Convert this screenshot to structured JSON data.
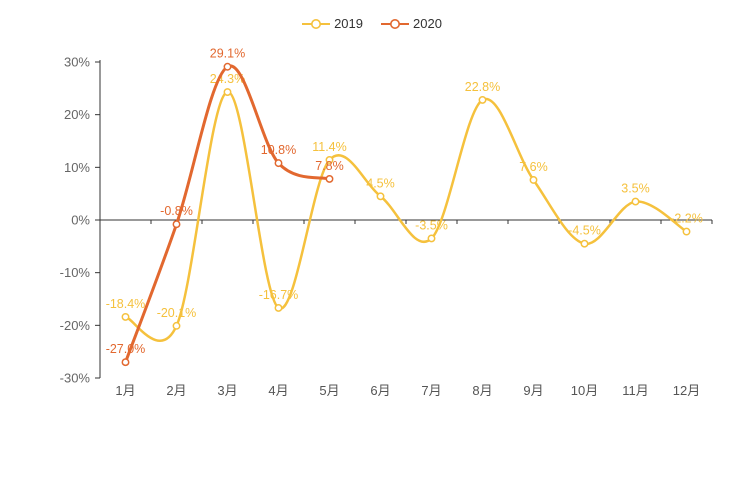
{
  "chart_data": {
    "type": "line",
    "title": "",
    "smooth": true,
    "grid": false,
    "legend_position": "top",
    "background": "#ffffff",
    "axis_color": "#333333",
    "axis_label_color": "#666666",
    "categories": [
      "1月",
      "2月",
      "3月",
      "4月",
      "5月",
      "6月",
      "7月",
      "8月",
      "9月",
      "10月",
      "11月",
      "12月"
    ],
    "ylim": [
      -30,
      30
    ],
    "y_ticks": [
      {
        "value": 30,
        "label": "30%"
      },
      {
        "value": 20,
        "label": "20%"
      },
      {
        "value": 10,
        "label": "10%"
      },
      {
        "value": 0,
        "label": "0%"
      },
      {
        "value": -10,
        "label": "-10%"
      },
      {
        "value": -20,
        "label": "-20%"
      },
      {
        "value": -30,
        "label": "-30%"
      }
    ],
    "series": [
      {
        "name": "2019",
        "color": "#F5C13D",
        "line_width": 2.5,
        "values": [
          -18.4,
          -20.1,
          24.3,
          -16.7,
          11.4,
          4.5,
          -3.5,
          22.8,
          7.6,
          -4.5,
          3.5,
          -2.2
        ],
        "labels": [
          "-18.4%",
          "-20.1%",
          "24.3%",
          "-16.7%",
          "11.4%",
          "4.5%",
          "-3.5%",
          "22.8%",
          "7.6%",
          "-4.5%",
          "3.5%",
          "-2.2%"
        ]
      },
      {
        "name": "2020",
        "color": "#E2682F",
        "line_width": 3,
        "values": [
          -27.0,
          -0.8,
          29.1,
          10.8,
          7.8
        ],
        "labels": [
          "-27.0%",
          "-0.8%",
          "29.1%",
          "10.8%",
          "7.8%"
        ]
      }
    ]
  }
}
